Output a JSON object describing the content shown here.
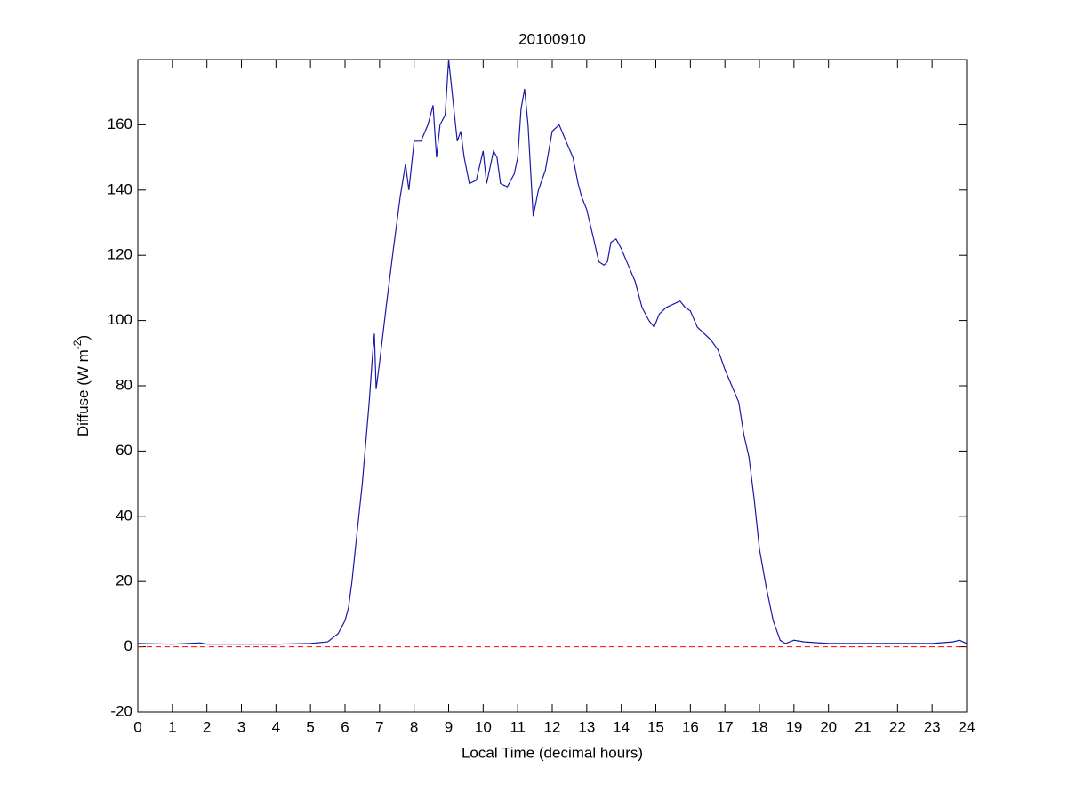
{
  "chart_data": {
    "type": "line",
    "title": "20100910",
    "xlabel": "Local Time (decimal hours)",
    "ylabel": {
      "text": "Diffuse (W m",
      "superscript": "-2",
      "suffix": ")"
    },
    "xlim": [
      0,
      24
    ],
    "xticks": [
      0,
      1,
      2,
      3,
      4,
      5,
      6,
      7,
      8,
      9,
      10,
      11,
      12,
      13,
      14,
      15,
      16,
      17,
      18,
      19,
      20,
      21,
      22,
      23,
      24
    ],
    "ylim": [
      -20,
      180
    ],
    "yticks": [
      -20,
      0,
      20,
      40,
      60,
      80,
      100,
      120,
      140,
      160
    ],
    "reference_line": {
      "value": 0,
      "color": "#ff0000",
      "style": "dashed"
    },
    "x": [
      0,
      1,
      1.8,
      2,
      3,
      4,
      5,
      5.5,
      5.8,
      6.0,
      6.1,
      6.2,
      6.3,
      6.5,
      6.7,
      6.8,
      6.85,
      6.9,
      7.0,
      7.2,
      7.4,
      7.6,
      7.75,
      7.85,
      8.0,
      8.2,
      8.4,
      8.55,
      8.65,
      8.75,
      8.9,
      9.0,
      9.1,
      9.25,
      9.35,
      9.45,
      9.6,
      9.8,
      10.0,
      10.1,
      10.3,
      10.4,
      10.5,
      10.7,
      10.9,
      11.0,
      11.1,
      11.2,
      11.3,
      11.45,
      11.6,
      11.8,
      12.0,
      12.2,
      12.4,
      12.6,
      12.75,
      12.85,
      13.0,
      13.2,
      13.35,
      13.5,
      13.6,
      13.7,
      13.85,
      14.0,
      14.2,
      14.4,
      14.6,
      14.8,
      14.95,
      15.1,
      15.3,
      15.5,
      15.7,
      15.85,
      16.0,
      16.2,
      16.4,
      16.6,
      16.8,
      17.0,
      17.2,
      17.4,
      17.55,
      17.7,
      17.85,
      18.0,
      18.2,
      18.4,
      18.6,
      18.75,
      19.0,
      19.3,
      20,
      21,
      22,
      23,
      23.6,
      23.8,
      24
    ],
    "series": [
      {
        "name": "Diffuse",
        "color": "#1a1aa8",
        "values": [
          1,
          0.8,
          1.2,
          0.8,
          0.8,
          0.8,
          1,
          1.5,
          4,
          8,
          12,
          20,
          30,
          50,
          75,
          90,
          96,
          79,
          87,
          105,
          122,
          138,
          148,
          140,
          155,
          155,
          160,
          166,
          150,
          160,
          163,
          180,
          170,
          155,
          158,
          150,
          142,
          143,
          152,
          142,
          152,
          150,
          142,
          141,
          145,
          150,
          165,
          171,
          160,
          132,
          140,
          146,
          158,
          160,
          155,
          150,
          142,
          138,
          134,
          125,
          118,
          117,
          118,
          124,
          125,
          122,
          117,
          112,
          104,
          100,
          98,
          102,
          104,
          105,
          106,
          104,
          103,
          98,
          96,
          94,
          91,
          85,
          80,
          75,
          65,
          58,
          45,
          30,
          18,
          8,
          2,
          1,
          2,
          1.5,
          1,
          1,
          1,
          1,
          1.5,
          2,
          1
        ]
      }
    ]
  }
}
